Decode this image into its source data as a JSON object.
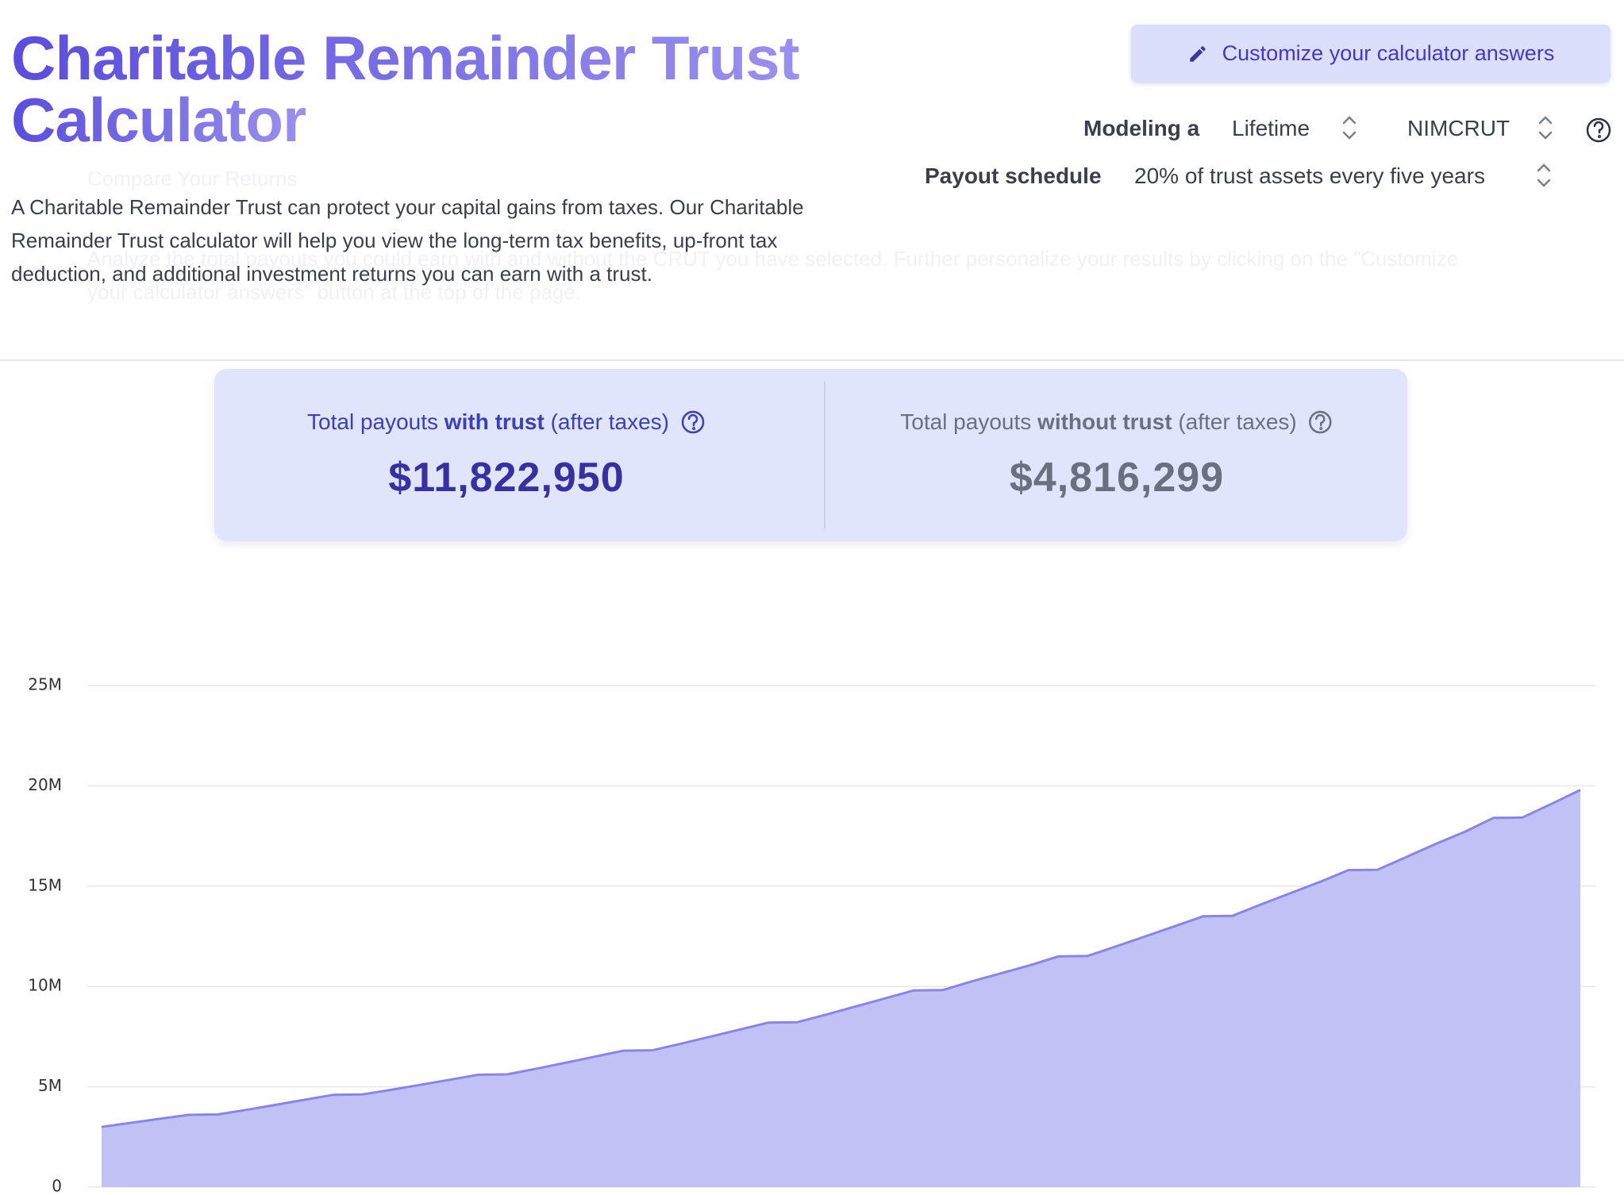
{
  "header": {
    "title_line1": "Charitable Remainder Trust",
    "title_line2": "Calculator",
    "description": "A Charitable Remainder Trust can protect your capital gains from taxes. Our Charitable Remainder Trust calculator will help you view the long-term tax benefits, up-front tax deduction, and additional investment returns you can earn with a trust.",
    "faded_heading": "Compare Your Returns",
    "faded_text": "Analyze the total payouts you could earn with and without the CRUT you have selected. Further personalize your results by clicking on the \"Customize your calculator answers\" button at the top of the page."
  },
  "customize_button": "Customize your calculator answers",
  "controls": {
    "modeling_label": "Modeling a",
    "modeling_value": "Lifetime",
    "trust_type": "NIMCRUT",
    "payout_label": "Payout schedule",
    "payout_value": "20% of trust assets every five years"
  },
  "summary": {
    "with": {
      "pre": "Total payouts ",
      "bold": "with trust",
      "post": " (after taxes)",
      "amount": "$11,822,950"
    },
    "without": {
      "pre": "Total payouts ",
      "bold": "without trust",
      "post": " (after taxes)",
      "amount": "$4,816,299"
    }
  },
  "chart_data": {
    "type": "area",
    "color": "#8b84e8",
    "fill": "#c0c2f6",
    "grid": true,
    "ylim": [
      0,
      25000000
    ],
    "yticks": [
      0,
      {
        "value": 5000000,
        "label": "5M"
      },
      {
        "value": 10000000,
        "label": "10M"
      },
      {
        "value": 15000000,
        "label": "15M"
      },
      {
        "value": 20000000,
        "label": "20M"
      },
      {
        "value": 25000000,
        "label": "25M"
      }
    ],
    "values": [
      3000000,
      3200000,
      3400000,
      3600000,
      3620000,
      3850000,
      4100000,
      4350000,
      4600000,
      4620000,
      4850000,
      5100000,
      5350000,
      5600000,
      5620000,
      5900000,
      6200000,
      6500000,
      6800000,
      6820000,
      7150000,
      7500000,
      7850000,
      8200000,
      8220000,
      8600000,
      9000000,
      9400000,
      9800000,
      9820000,
      10250000,
      10650000,
      11050000,
      11500000,
      11520000,
      12000000,
      12500000,
      13000000,
      13500000,
      13520000,
      14100000,
      14650000,
      15200000,
      15800000,
      15820000,
      16450000,
      17100000,
      17700000,
      18400000,
      18420000,
      19100000,
      19800000
    ]
  }
}
